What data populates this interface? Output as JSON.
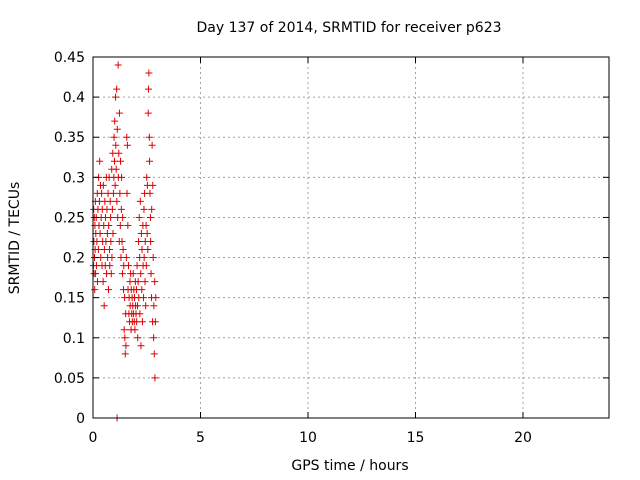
{
  "chart_data": {
    "type": "scatter",
    "title": "Day 137 of 2014, SRMTID for receiver p623",
    "xlabel": "GPS time / hours",
    "ylabel": "SRMTID / TECUs",
    "xlim": [
      0,
      24
    ],
    "ylim": [
      0,
      0.45
    ],
    "xticks": [
      0,
      5,
      10,
      15,
      20
    ],
    "xtick_labels": [
      "0",
      "5",
      "10",
      "15",
      "20"
    ],
    "yticks": [
      0,
      0.05,
      0.1,
      0.15,
      0.2,
      0.25,
      0.3,
      0.35,
      0.4,
      0.45
    ],
    "ytick_labels": [
      "0",
      "0.05",
      "0.1",
      "0.15",
      "0.2",
      "0.25",
      "0.3",
      "0.35",
      "0.4",
      "0.45"
    ],
    "grid": true,
    "marker": "+",
    "marker_color": "#e00000",
    "series": [
      {
        "points": [
          [
            0.02,
            0.19
          ],
          [
            0.03,
            0.26
          ],
          [
            0.04,
            0.22
          ],
          [
            0.05,
            0.18
          ],
          [
            0.06,
            0.25
          ],
          [
            0.07,
            0.2
          ],
          [
            0.08,
            0.16
          ],
          [
            0.09,
            0.24
          ],
          [
            0.1,
            0.21
          ],
          [
            0.11,
            0.27
          ],
          [
            0.12,
            0.18
          ],
          [
            0.13,
            0.23
          ],
          [
            0.15,
            0.25
          ],
          [
            0.16,
            0.19
          ],
          [
            0.18,
            0.22
          ],
          [
            0.2,
            0.28
          ],
          [
            0.21,
            0.17
          ],
          [
            0.23,
            0.26
          ],
          [
            0.25,
            0.21
          ],
          [
            0.26,
            0.3
          ],
          [
            0.28,
            0.24
          ],
          [
            0.3,
            0.27
          ],
          [
            0.31,
            0.32
          ],
          [
            0.33,
            0.23
          ],
          [
            0.35,
            0.29
          ],
          [
            0.36,
            0.2
          ],
          [
            0.38,
            0.25
          ],
          [
            0.4,
            0.28
          ],
          [
            0.42,
            0.19
          ],
          [
            0.43,
            0.26
          ],
          [
            0.45,
            0.22
          ],
          [
            0.47,
            0.17
          ],
          [
            0.48,
            0.29
          ],
          [
            0.5,
            0.24
          ],
          [
            0.52,
            0.14
          ],
          [
            0.53,
            0.21
          ],
          [
            0.55,
            0.27
          ],
          [
            0.57,
            0.19
          ],
          [
            0.58,
            0.25
          ],
          [
            0.6,
            0.22
          ],
          [
            0.62,
            0.3
          ],
          [
            0.63,
            0.18
          ],
          [
            0.65,
            0.26
          ],
          [
            0.67,
            0.23
          ],
          [
            0.68,
            0.2
          ],
          [
            0.7,
            0.28
          ],
          [
            0.72,
            0.16
          ],
          [
            0.73,
            0.24
          ],
          [
            0.75,
            0.3
          ],
          [
            0.77,
            0.21
          ],
          [
            0.78,
            0.19
          ],
          [
            0.8,
            0.27
          ],
          [
            0.82,
            0.25
          ],
          [
            0.83,
            0.22
          ],
          [
            0.85,
            0.18
          ],
          [
            0.87,
            0.31
          ],
          [
            0.88,
            0.2
          ],
          [
            0.9,
            0.26
          ],
          [
            0.92,
            0.33
          ],
          [
            0.93,
            0.23
          ],
          [
            0.95,
            0.28
          ],
          [
            0.97,
            0.3
          ],
          [
            0.98,
            0.35
          ],
          [
            1.0,
            0.32
          ],
          [
            1.01,
            0.37
          ],
          [
            1.03,
            0.29
          ],
          [
            1.05,
            0.4
          ],
          [
            1.06,
            0.34
          ],
          [
            1.08,
            0.31
          ],
          [
            1.1,
            0.41
          ],
          [
            1.11,
            0.27
          ],
          [
            1.12,
            0.0
          ],
          [
            1.13,
            0.36
          ],
          [
            1.15,
            0.25
          ],
          [
            1.17,
            0.44
          ],
          [
            1.18,
            0.3
          ],
          [
            1.2,
            0.33
          ],
          [
            1.22,
            0.22
          ],
          [
            1.23,
            0.38
          ],
          [
            1.25,
            0.28
          ],
          [
            1.27,
            0.24
          ],
          [
            1.28,
            0.32
          ],
          [
            1.3,
            0.2
          ],
          [
            1.32,
            0.26
          ],
          [
            1.33,
            0.3
          ],
          [
            1.35,
            0.22
          ],
          [
            1.37,
            0.18
          ],
          [
            1.38,
            0.25
          ],
          [
            1.4,
            0.21
          ],
          [
            1.42,
            0.16
          ],
          [
            1.43,
            0.19
          ],
          [
            1.45,
            0.11
          ],
          [
            1.47,
            0.15
          ],
          [
            1.48,
            0.1
          ],
          [
            1.5,
            0.08
          ],
          [
            1.52,
            0.13
          ],
          [
            1.53,
            0.09
          ],
          [
            1.55,
            0.2
          ],
          [
            1.57,
            0.35
          ],
          [
            1.58,
            0.28
          ],
          [
            1.6,
            0.34
          ],
          [
            1.62,
            0.24
          ],
          [
            1.63,
            0.16
          ],
          [
            1.65,
            0.19
          ],
          [
            1.67,
            0.13
          ],
          [
            1.68,
            0.15
          ],
          [
            1.7,
            0.12
          ],
          [
            1.72,
            0.17
          ],
          [
            1.73,
            0.14
          ],
          [
            1.75,
            0.18
          ],
          [
            1.77,
            0.11
          ],
          [
            1.78,
            0.16
          ],
          [
            1.8,
            0.13
          ],
          [
            1.82,
            0.15
          ],
          [
            1.83,
            0.12
          ],
          [
            1.85,
            0.14
          ],
          [
            1.87,
            0.18
          ],
          [
            1.88,
            0.13
          ],
          [
            1.9,
            0.16
          ],
          [
            1.92,
            0.12
          ],
          [
            1.93,
            0.15
          ],
          [
            1.95,
            0.11
          ],
          [
            1.97,
            0.17
          ],
          [
            1.98,
            0.14
          ],
          [
            2.0,
            0.13
          ],
          [
            2.02,
            0.16
          ],
          [
            2.03,
            0.12
          ],
          [
            2.05,
            0.19
          ],
          [
            2.07,
            0.14
          ],
          [
            2.08,
            0.1
          ],
          [
            2.1,
            0.17
          ],
          [
            2.12,
            0.22
          ],
          [
            2.13,
            0.15
          ],
          [
            2.15,
            0.25
          ],
          [
            2.17,
            0.2
          ],
          [
            2.18,
            0.13
          ],
          [
            2.2,
            0.27
          ],
          [
            2.22,
            0.18
          ],
          [
            2.23,
            0.09
          ],
          [
            2.25,
            0.23
          ],
          [
            2.27,
            0.16
          ],
          [
            2.28,
            0.21
          ],
          [
            2.3,
            0.12
          ],
          [
            2.32,
            0.24
          ],
          [
            2.33,
            0.19
          ],
          [
            2.35,
            0.15
          ],
          [
            2.37,
            0.26
          ],
          [
            2.38,
            0.2
          ],
          [
            2.4,
            0.28
          ],
          [
            2.42,
            0.17
          ],
          [
            2.43,
            0.22
          ],
          [
            2.45,
            0.14
          ],
          [
            2.47,
            0.24
          ],
          [
            2.48,
            0.19
          ],
          [
            2.5,
            0.3
          ],
          [
            2.52,
            0.23
          ],
          [
            2.53,
            0.29
          ],
          [
            2.55,
            0.21
          ],
          [
            2.57,
            0.38
          ],
          [
            2.58,
            0.41
          ],
          [
            2.6,
            0.43
          ],
          [
            2.62,
            0.35
          ],
          [
            2.63,
            0.32
          ],
          [
            2.65,
            0.28
          ],
          [
            2.67,
            0.25
          ],
          [
            2.68,
            0.22
          ],
          [
            2.7,
            0.18
          ],
          [
            2.72,
            0.15
          ],
          [
            2.73,
            0.26
          ],
          [
            2.75,
            0.34
          ],
          [
            2.77,
            0.12
          ],
          [
            2.78,
            0.29
          ],
          [
            2.8,
            0.2
          ],
          [
            2.82,
            0.1
          ],
          [
            2.83,
            0.14
          ],
          [
            2.85,
            0.08
          ],
          [
            2.87,
            0.17
          ],
          [
            2.88,
            0.05
          ],
          [
            2.9,
            0.12
          ],
          [
            2.92,
            0.15
          ]
        ]
      }
    ]
  }
}
